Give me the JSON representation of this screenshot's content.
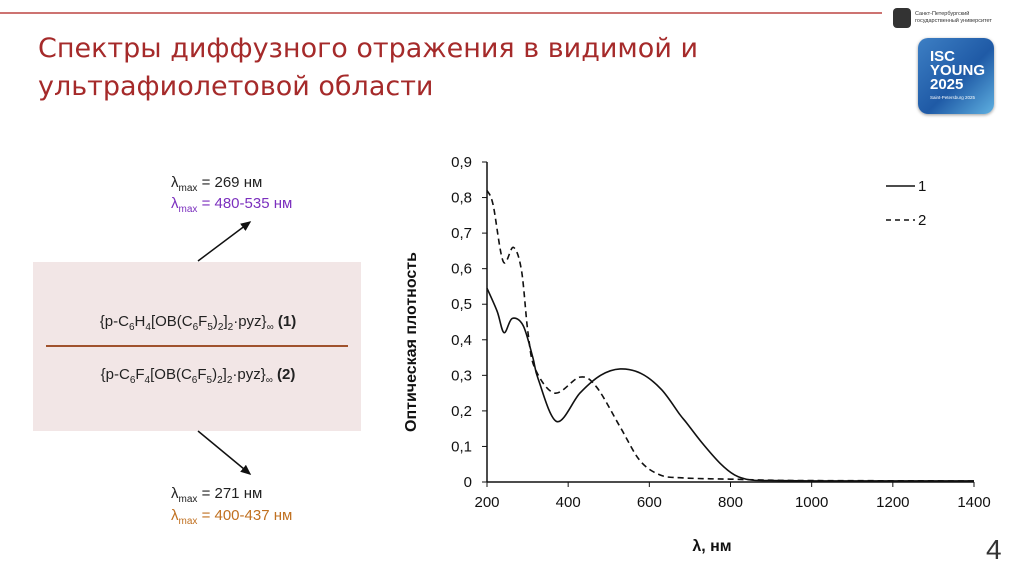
{
  "header": {
    "title_line1": "Спектры диффузного отражения в видимой и",
    "title_line2": "ультрафиолетовой области",
    "university": "Санкт-Петербургский государственный университет",
    "conf_logo_lines": [
      "ISC",
      "YOUNG",
      "2025"
    ],
    "conf_logo_sub": "Saint-Petersburg 2025",
    "accent_color": "#a52a2a"
  },
  "compounds": {
    "c1_formula": [
      "{p-C",
      "6",
      "H",
      "4",
      "[OB(C",
      "6",
      "F",
      "5",
      ")",
      "2",
      "]",
      "2",
      "·pyz}",
      "∞"
    ],
    "c1_label": "(1)",
    "c2_formula": [
      "{p-C",
      "6",
      "F",
      "4",
      "[OB(C",
      "6",
      "F",
      "5",
      ")",
      "2",
      "]",
      "2",
      "·pyz}",
      "∞"
    ],
    "c2_label": "(2)",
    "top_lambda1": {
      "sym": "λ",
      "sub": "max",
      "text": " = 269 нм",
      "color": "#222222"
    },
    "top_lambda2": {
      "sym": "λ",
      "sub": "max",
      "text": " = 480-535 нм",
      "color": "#7b2fbe"
    },
    "bot_lambda1": {
      "sym": "λ",
      "sub": "max",
      "text": " = 271 нм",
      "color": "#222222"
    },
    "bot_lambda2": {
      "sym": "λ",
      "sub": "max",
      "text": " = 400-437 нм",
      "color": "#c07020"
    }
  },
  "page_number": "4",
  "chart_data": {
    "type": "line",
    "xlabel": "λ, нм",
    "ylabel": "Оптическая плотность",
    "xlim": [
      200,
      1400
    ],
    "ylim": [
      0,
      0.9
    ],
    "xticks": [
      "200",
      "400",
      "600",
      "800",
      "1000",
      "1200",
      "1400"
    ],
    "yticks": [
      "0",
      "0,1",
      "0,2",
      "0,3",
      "0,4",
      "0,5",
      "0,6",
      "0,7",
      "0,8",
      "0,9"
    ],
    "grid": false,
    "legend_position": "top-right",
    "series": [
      {
        "name": "1",
        "style": "solid",
        "x": [
          200,
          225,
          242,
          262,
          289,
          313,
          326,
          372,
          429,
          480,
          528,
          580,
          630,
          675,
          692,
          730,
          774,
          810,
          848,
          900,
          1000,
          1200,
          1400
        ],
        "y": [
          0.545,
          0.48,
          0.42,
          0.46,
          0.44,
          0.35,
          0.29,
          0.17,
          0.25,
          0.3,
          0.318,
          0.305,
          0.26,
          0.19,
          0.166,
          0.11,
          0.053,
          0.02,
          0.006,
          0.004,
          0.003,
          0.003,
          0.003
        ]
      },
      {
        "name": "2",
        "style": "dashed",
        "x": [
          200,
          215,
          240,
          265,
          285,
          301,
          318,
          367,
          429,
          470,
          528,
          577,
          626,
          675,
          750,
          800,
          900,
          1000,
          1400
        ],
        "y": [
          0.82,
          0.78,
          0.62,
          0.66,
          0.595,
          0.42,
          0.32,
          0.25,
          0.295,
          0.267,
          0.155,
          0.06,
          0.02,
          0.012,
          0.009,
          0.008,
          0.005,
          0.004,
          0.003
        ]
      }
    ]
  }
}
